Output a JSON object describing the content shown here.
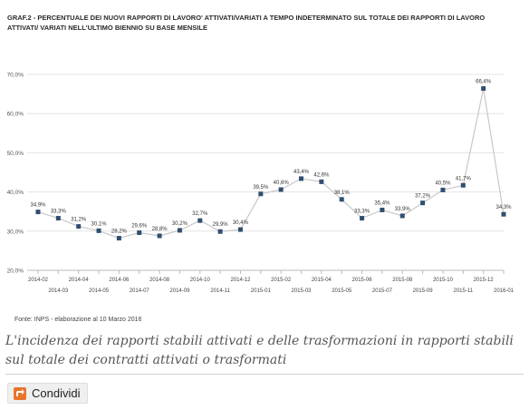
{
  "chart_data": {
    "type": "line",
    "title": "GRAF.2 - PERCENTUALE DEI NUOVI RAPPORTI DI LAVORO' ATTIVATI/VARIATI A TEMPO INDETERMINATO SUL TOTALE DEI RAPPORTI DI LAVORO ATTIVATI/ VARIATI NELL'ULTIMO BIENNIO SU BASE MENSILE",
    "x": [
      "2014-02",
      "2014-03",
      "2014-04",
      "2014-05",
      "2014-06",
      "2014-07",
      "2014-08",
      "2014-09",
      "2014-10",
      "2014-11",
      "2014-12",
      "2015-01",
      "2015-02",
      "2015-03",
      "2015-04",
      "2015-05",
      "2015-06",
      "2015-07",
      "2015-08",
      "2015-09",
      "2015-10",
      "2015-11",
      "2015-12",
      "2016-01"
    ],
    "values": [
      34.9,
      33.3,
      31.2,
      30.1,
      28.2,
      29.6,
      28.8,
      30.2,
      32.7,
      29.9,
      30.4,
      39.5,
      40.6,
      43.4,
      42.6,
      38.1,
      33.3,
      35.4,
      33.9,
      37.2,
      40.5,
      41.7,
      66.4,
      34.3
    ],
    "data_labels": [
      "34,9%",
      "33,3%",
      "31,2%",
      "30,1%",
      "28,2%",
      "29,6%",
      "28,8%",
      "30,2%",
      "32,7%",
      "29,9%",
      "30,4%",
      "39,5%",
      "40,6%",
      "43,4%",
      "42,6%",
      "38,1%",
      "33,3%",
      "35,4%",
      "33,9%",
      "37,2%",
      "40,5%",
      "41,7%",
      "66,4%",
      "34,3%"
    ],
    "yticks": [
      "20,0%",
      "30,0%",
      "40,0%",
      "50,0%",
      "60,0%",
      "70,0%"
    ],
    "ylim": [
      20,
      70
    ],
    "grid": true,
    "line_color": "#c8c8c8",
    "marker_color": "#2f4f6f"
  },
  "source": "Fonte: INPS - elaborazione al 10 Marzo 2016",
  "caption": "L'incidenza dei rapporti stabili attivati e delle trasformazioni in rapporti stabili sul totale dei contratti attivati o trasformati",
  "share": {
    "label": "Condividi",
    "icon": "share-icon",
    "icon_color": "#e8742c"
  }
}
